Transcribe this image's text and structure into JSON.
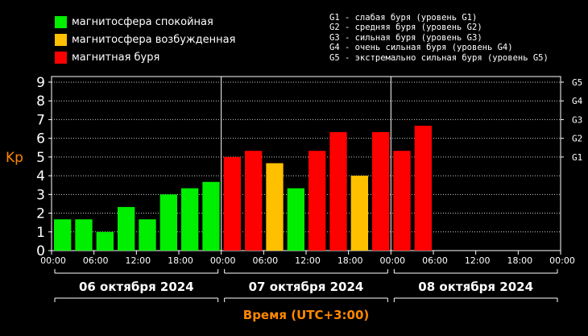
{
  "legend": {
    "items": [
      {
        "label": "магнитосфера спокойная",
        "color": "#00ee00"
      },
      {
        "label": "магнитосфера возбужденная",
        "color": "#ffc000"
      },
      {
        "label": "магнитная буря",
        "color": "#ff0000"
      }
    ],
    "storm_levels": [
      "G1 - слабая буря (уровень G1)",
      "G2 - средняя буря (уровень G2)",
      "G3 - сильная буря (уровень G3)",
      "G4 - очень сильная буря (уровень G4)",
      "G5 - экстремально сильная буря (уровень G5)"
    ]
  },
  "chart_data": {
    "type": "bar",
    "ylabel": "Kp",
    "xlabel": "Время (UTC+3:00)",
    "ylim": [
      0,
      9.3
    ],
    "y_ticks": [
      "0",
      "1",
      "2",
      "3",
      "4",
      "5",
      "6",
      "7",
      "8",
      "9"
    ],
    "right_ticks": [
      {
        "label": "G1",
        "value": 5
      },
      {
        "label": "G2",
        "value": 6
      },
      {
        "label": "G3",
        "value": 7
      },
      {
        "label": "G4",
        "value": 8
      },
      {
        "label": "G5",
        "value": 9
      }
    ],
    "x_tick_labels": [
      "00:00",
      "06:00",
      "12:00",
      "18:00",
      "00:00",
      "06:00",
      "12:00",
      "18:00",
      "00:00",
      "06:00",
      "12:00",
      "18:00",
      "00:00"
    ],
    "days": [
      "06 октября 2024",
      "07 октября 2024",
      "08 октября 2024"
    ],
    "intervals_per_day": 8,
    "values": [
      1.67,
      1.67,
      1.0,
      2.33,
      1.67,
      3.0,
      3.33,
      3.67,
      5.0,
      5.33,
      4.67,
      3.33,
      5.33,
      6.33,
      4.0,
      6.33,
      5.33,
      6.67
    ],
    "colors": [
      "#00ee00",
      "#00ee00",
      "#00ee00",
      "#00ee00",
      "#00ee00",
      "#00ee00",
      "#00ee00",
      "#00ee00",
      "#ff0000",
      "#ff0000",
      "#ffc000",
      "#00ee00",
      "#ff0000",
      "#ff0000",
      "#ffc000",
      "#ff0000",
      "#ff0000",
      "#ff0000"
    ],
    "grid": true
  }
}
